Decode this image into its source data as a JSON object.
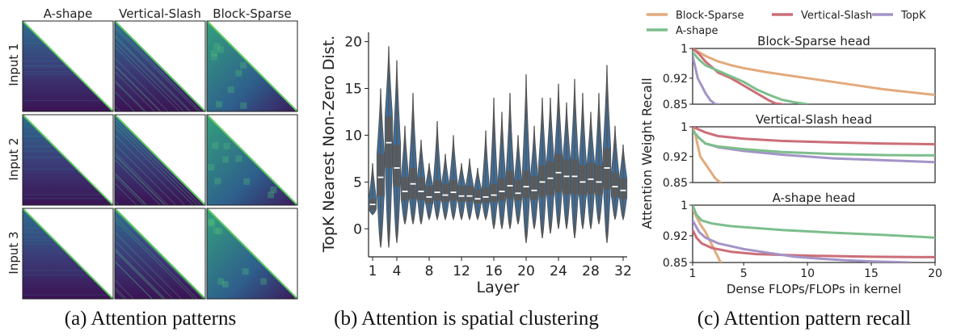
{
  "panel_a": {
    "columns": [
      "A-shape",
      "Vertical-Slash",
      "Block-Sparse"
    ],
    "rows": [
      "Input 1",
      "Input 2",
      "Input 3"
    ],
    "caption": "(a) Attention patterns",
    "colors": {
      "low": "#3b0f52",
      "mid": "#2a788e",
      "high": "#5ec962"
    }
  },
  "panel_b": {
    "caption": "(b) Attention is spatial clustering"
  },
  "panel_c": {
    "caption": "(c) Attention pattern recall"
  },
  "chart_data": [
    {
      "type": "violin",
      "title": "",
      "xlabel": "Layer",
      "ylabel": "TopK Nearest Non-Zero Dist.",
      "xticks": [
        "1",
        "4",
        "8",
        "12",
        "16",
        "20",
        "24",
        "28",
        "32"
      ],
      "yticks": [
        "0",
        "5",
        "10",
        "15",
        "20"
      ],
      "ylim": [
        -3,
        21
      ],
      "x": [
        1,
        2,
        3,
        4,
        5,
        6,
        7,
        8,
        9,
        10,
        11,
        12,
        13,
        14,
        15,
        16,
        17,
        18,
        19,
        20,
        21,
        22,
        23,
        24,
        25,
        26,
        27,
        28,
        29,
        30,
        31,
        32
      ],
      "median": [
        2.6,
        5.5,
        9.2,
        6.5,
        4.0,
        4.8,
        4.0,
        3.4,
        3.9,
        3.6,
        3.9,
        3.5,
        3.5,
        3.2,
        3.4,
        3.6,
        4.0,
        4.6,
        3.8,
        4.5,
        4.1,
        5.0,
        5.4,
        6.0,
        5.6,
        5.6,
        5.0,
        5.3,
        5.0,
        6.5,
        4.5,
        4.1
      ],
      "q1": [
        2.0,
        3.5,
        6.5,
        4.5,
        3.0,
        3.2,
        3.1,
        2.7,
        3.0,
        2.9,
        3.0,
        2.9,
        2.9,
        2.7,
        2.8,
        2.9,
        3.0,
        3.2,
        3.0,
        3.3,
        3.1,
        3.4,
        3.6,
        3.9,
        3.7,
        3.7,
        3.6,
        3.7,
        3.6,
        4.2,
        3.4,
        3.2
      ],
      "q3": [
        3.2,
        8.0,
        12.0,
        9.0,
        5.5,
        6.5,
        5.5,
        4.6,
        5.2,
        4.8,
        5.2,
        4.6,
        4.6,
        4.2,
        4.4,
        4.8,
        5.4,
        6.2,
        5.2,
        6.2,
        5.6,
        6.8,
        7.2,
        8.0,
        7.4,
        7.4,
        6.8,
        7.0,
        6.8,
        8.6,
        6.0,
        5.4
      ],
      "min": [
        1.5,
        -2.0,
        -2.0,
        -1.5,
        0.5,
        0.5,
        0.5,
        1.0,
        1.0,
        1.0,
        1.0,
        1.0,
        1.0,
        1.0,
        1.0,
        0.0,
        0.0,
        0.0,
        0.5,
        -1.5,
        0.0,
        -1.0,
        -0.5,
        0.0,
        0.0,
        -1.0,
        0.0,
        0.0,
        0.5,
        -1.5,
        1.0,
        1.0
      ],
      "max": [
        7.0,
        15.0,
        19.5,
        18.0,
        11.0,
        14.5,
        9.5,
        7.0,
        11.5,
        8.0,
        10.0,
        7.0,
        7.5,
        6.5,
        10.5,
        14.0,
        12.5,
        14.5,
        10.0,
        16.5,
        11.0,
        14.0,
        14.0,
        15.5,
        13.5,
        16.0,
        14.5,
        12.5,
        14.5,
        17.5,
        11.0,
        9.0
      ]
    },
    {
      "type": "line",
      "title": "Block-Sparse head",
      "xlabel": "Dense FLOPs/FLOPs in kernel",
      "ylabel": "Attention Weight Recall",
      "xlim": [
        1,
        20
      ],
      "ylim": [
        0.85,
        1.0
      ],
      "xticks": [
        "1",
        "5",
        "10",
        "15",
        "20"
      ],
      "yticks": [
        "0.85",
        "0.92",
        "1"
      ],
      "legend": [
        "Block-Sparse",
        "Vertical-Slash",
        "TopK",
        "A-shape"
      ],
      "series": [
        {
          "name": "Block-Sparse",
          "color": "#e3aa7c",
          "x": [
            1,
            1.5,
            2,
            3,
            4,
            5,
            7,
            10,
            13,
            16,
            20
          ],
          "y": [
            1.0,
            0.99,
            0.98,
            0.965,
            0.955,
            0.947,
            0.935,
            0.92,
            0.905,
            0.89,
            0.875
          ]
        },
        {
          "name": "Vertical-Slash",
          "color": "#cc6e78",
          "x": [
            1,
            1.5,
            2,
            3,
            4,
            5,
            6,
            7,
            7.5,
            8
          ],
          "y": [
            1.0,
            0.985,
            0.965,
            0.935,
            0.92,
            0.9,
            0.88,
            0.86,
            0.852,
            0.85
          ]
        },
        {
          "name": "TopK",
          "color": "#a494c8",
          "x": [
            1,
            1.2,
            1.4,
            1.7,
            2,
            2.4,
            2.8,
            3
          ],
          "y": [
            0.98,
            0.95,
            0.92,
            0.9,
            0.88,
            0.86,
            0.85,
            0.85
          ]
        },
        {
          "name": "A-shape",
          "color": "#7dbe8c",
          "x": [
            1,
            1.5,
            2,
            3,
            4,
            5,
            6,
            7,
            8,
            9,
            10
          ],
          "y": [
            0.99,
            0.97,
            0.955,
            0.94,
            0.925,
            0.91,
            0.89,
            0.875,
            0.862,
            0.855,
            0.85
          ]
        }
      ]
    },
    {
      "type": "line",
      "title": "Vertical-Slash head",
      "xlabel": "",
      "ylabel": "",
      "xlim": [
        1,
        20
      ],
      "ylim": [
        0.85,
        1.0
      ],
      "yticks": [
        "0.85",
        "0.92",
        "1"
      ],
      "series": [
        {
          "name": "Block-Sparse",
          "color": "#e3aa7c",
          "x": [
            1,
            1.2,
            1.4,
            1.6,
            2,
            2.4,
            2.8,
            3.2
          ],
          "y": [
            1.0,
            0.98,
            0.95,
            0.92,
            0.9,
            0.88,
            0.86,
            0.85
          ]
        },
        {
          "name": "Vertical-Slash",
          "color": "#cc6e78",
          "x": [
            1,
            2,
            3,
            5,
            8,
            12,
            16,
            20
          ],
          "y": [
            1.0,
            0.985,
            0.975,
            0.968,
            0.962,
            0.958,
            0.955,
            0.953
          ]
        },
        {
          "name": "TopK",
          "color": "#a494c8",
          "x": [
            1,
            1.5,
            2,
            3,
            5,
            8,
            12,
            16,
            20
          ],
          "y": [
            0.99,
            0.97,
            0.955,
            0.945,
            0.935,
            0.925,
            0.915,
            0.91,
            0.905
          ]
        },
        {
          "name": "A-shape",
          "color": "#7dbe8c",
          "x": [
            1,
            1.5,
            2,
            3,
            5,
            8,
            12,
            16,
            20
          ],
          "y": [
            0.99,
            0.97,
            0.955,
            0.947,
            0.94,
            0.932,
            0.927,
            0.924,
            0.923
          ]
        }
      ]
    },
    {
      "type": "line",
      "title": "A-shape head",
      "xlabel": "",
      "ylabel": "",
      "xlim": [
        1,
        20
      ],
      "ylim": [
        0.85,
        1.0
      ],
      "yticks": [
        "0.85",
        "0.92",
        "1"
      ],
      "series": [
        {
          "name": "Block-Sparse",
          "color": "#e3aa7c",
          "x": [
            1,
            1.3,
            1.6,
            2,
            2.3,
            2.6,
            2.9,
            3.2
          ],
          "y": [
            0.99,
            0.97,
            0.95,
            0.93,
            0.91,
            0.89,
            0.87,
            0.85
          ]
        },
        {
          "name": "Vertical-Slash",
          "color": "#cc6e78",
          "x": [
            1,
            1.3,
            1.7,
            2.5,
            4,
            6,
            10,
            15,
            20
          ],
          "y": [
            0.935,
            0.915,
            0.9,
            0.888,
            0.878,
            0.872,
            0.868,
            0.865,
            0.864
          ]
        },
        {
          "name": "TopK",
          "color": "#a494c8",
          "x": [
            1,
            1.5,
            2,
            3,
            5,
            7,
            9,
            11,
            13,
            15,
            17,
            18
          ],
          "y": [
            0.96,
            0.93,
            0.915,
            0.9,
            0.885,
            0.875,
            0.865,
            0.86,
            0.856,
            0.853,
            0.851,
            0.85
          ]
        },
        {
          "name": "A-shape",
          "color": "#7dbe8c",
          "x": [
            1,
            1.3,
            1.7,
            2.5,
            4,
            6,
            8,
            12,
            16,
            20
          ],
          "y": [
            1.0,
            0.975,
            0.96,
            0.952,
            0.945,
            0.94,
            0.935,
            0.928,
            0.922,
            0.915
          ]
        }
      ]
    }
  ]
}
